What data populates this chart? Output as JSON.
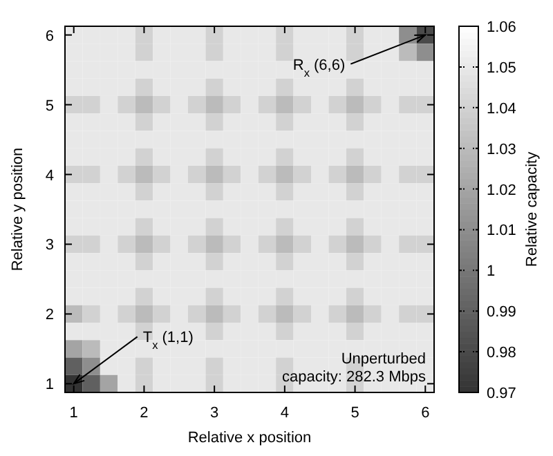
{
  "chart_data": {
    "type": "heatmap",
    "xlabel": "Relative x position",
    "ylabel": "Relative y position",
    "clabel": "Relative capacity",
    "clim": [
      0.97,
      1.06
    ],
    "cticks": [
      0.97,
      0.98,
      0.99,
      1,
      1.01,
      1.02,
      1.03,
      1.04,
      1.05,
      1.06
    ],
    "categories": [
      "1",
      null,
      null,
      null,
      "2",
      null,
      null,
      null,
      "3",
      null,
      null,
      null,
      "4",
      null,
      null,
      null,
      "5",
      null,
      null,
      null,
      "6"
    ],
    "y_categories": [
      "6",
      null,
      null,
      null,
      "5",
      null,
      null,
      null,
      "4",
      null,
      null,
      null,
      "3",
      null,
      null,
      null,
      "2",
      null,
      null,
      null,
      "1"
    ],
    "cells": [
      [
        1.05,
        1.05,
        1.05,
        1.05,
        1.04,
        1.05,
        1.05,
        1.05,
        1.04,
        1.05,
        1.05,
        1.05,
        1.04,
        1.05,
        1.05,
        1.05,
        1.04,
        1.05,
        1.05,
        1.01,
        0.98
      ],
      [
        1.05,
        1.05,
        1.05,
        1.05,
        1.04,
        1.05,
        1.05,
        1.05,
        1.04,
        1.05,
        1.05,
        1.05,
        1.04,
        1.05,
        1.05,
        1.05,
        1.04,
        1.05,
        1.05,
        1.03,
        1.01
      ],
      [
        1.05,
        1.05,
        1.05,
        1.05,
        1.05,
        1.05,
        1.05,
        1.05,
        1.05,
        1.05,
        1.05,
        1.05,
        1.05,
        1.05,
        1.05,
        1.05,
        1.05,
        1.05,
        1.05,
        1.05,
        1.05
      ],
      [
        1.05,
        1.05,
        1.05,
        1.05,
        1.04,
        1.05,
        1.05,
        1.05,
        1.04,
        1.05,
        1.05,
        1.05,
        1.04,
        1.05,
        1.05,
        1.05,
        1.04,
        1.05,
        1.05,
        1.05,
        1.05
      ],
      [
        1.04,
        1.04,
        1.05,
        1.04,
        1.03,
        1.04,
        1.05,
        1.04,
        1.03,
        1.04,
        1.05,
        1.04,
        1.03,
        1.04,
        1.05,
        1.04,
        1.03,
        1.04,
        1.05,
        1.04,
        1.04
      ],
      [
        1.05,
        1.05,
        1.05,
        1.05,
        1.04,
        1.05,
        1.05,
        1.05,
        1.04,
        1.05,
        1.05,
        1.05,
        1.04,
        1.05,
        1.05,
        1.05,
        1.04,
        1.05,
        1.05,
        1.05,
        1.05
      ],
      [
        1.05,
        1.05,
        1.05,
        1.05,
        1.05,
        1.05,
        1.05,
        1.05,
        1.05,
        1.05,
        1.05,
        1.05,
        1.05,
        1.05,
        1.05,
        1.05,
        1.05,
        1.05,
        1.05,
        1.05,
        1.05
      ],
      [
        1.05,
        1.05,
        1.05,
        1.05,
        1.04,
        1.05,
        1.05,
        1.05,
        1.04,
        1.05,
        1.05,
        1.05,
        1.04,
        1.05,
        1.05,
        1.05,
        1.04,
        1.05,
        1.05,
        1.05,
        1.05
      ],
      [
        1.04,
        1.04,
        1.05,
        1.04,
        1.03,
        1.04,
        1.05,
        1.04,
        1.03,
        1.04,
        1.05,
        1.04,
        1.03,
        1.04,
        1.05,
        1.04,
        1.03,
        1.04,
        1.05,
        1.04,
        1.04
      ],
      [
        1.05,
        1.05,
        1.05,
        1.05,
        1.04,
        1.05,
        1.05,
        1.05,
        1.04,
        1.05,
        1.05,
        1.05,
        1.04,
        1.05,
        1.05,
        1.05,
        1.04,
        1.05,
        1.05,
        1.05,
        1.05
      ],
      [
        1.05,
        1.05,
        1.05,
        1.05,
        1.05,
        1.05,
        1.05,
        1.05,
        1.05,
        1.05,
        1.05,
        1.05,
        1.05,
        1.05,
        1.05,
        1.05,
        1.05,
        1.05,
        1.05,
        1.05,
        1.05
      ],
      [
        1.05,
        1.05,
        1.05,
        1.05,
        1.04,
        1.05,
        1.05,
        1.05,
        1.04,
        1.05,
        1.05,
        1.05,
        1.04,
        1.05,
        1.05,
        1.05,
        1.04,
        1.05,
        1.05,
        1.05,
        1.05
      ],
      [
        1.04,
        1.04,
        1.05,
        1.04,
        1.03,
        1.04,
        1.05,
        1.04,
        1.03,
        1.04,
        1.05,
        1.04,
        1.03,
        1.04,
        1.05,
        1.04,
        1.03,
        1.04,
        1.05,
        1.04,
        1.04
      ],
      [
        1.05,
        1.05,
        1.05,
        1.05,
        1.04,
        1.05,
        1.05,
        1.05,
        1.04,
        1.05,
        1.05,
        1.05,
        1.04,
        1.05,
        1.05,
        1.05,
        1.04,
        1.05,
        1.05,
        1.05,
        1.05
      ],
      [
        1.05,
        1.05,
        1.05,
        1.05,
        1.05,
        1.05,
        1.05,
        1.05,
        1.05,
        1.05,
        1.05,
        1.05,
        1.05,
        1.05,
        1.05,
        1.05,
        1.05,
        1.05,
        1.05,
        1.05,
        1.05
      ],
      [
        1.05,
        1.05,
        1.05,
        1.05,
        1.04,
        1.05,
        1.05,
        1.05,
        1.04,
        1.05,
        1.05,
        1.05,
        1.04,
        1.05,
        1.05,
        1.05,
        1.04,
        1.05,
        1.05,
        1.05,
        1.05
      ],
      [
        1.03,
        1.04,
        1.05,
        1.04,
        1.03,
        1.04,
        1.05,
        1.04,
        1.03,
        1.04,
        1.05,
        1.04,
        1.03,
        1.04,
        1.05,
        1.04,
        1.03,
        1.04,
        1.05,
        1.04,
        1.04
      ],
      [
        1.05,
        1.05,
        1.05,
        1.05,
        1.04,
        1.05,
        1.05,
        1.05,
        1.04,
        1.05,
        1.05,
        1.05,
        1.04,
        1.05,
        1.05,
        1.05,
        1.04,
        1.05,
        1.05,
        1.05,
        1.05
      ],
      [
        1.02,
        1.03,
        1.05,
        1.05,
        1.05,
        1.05,
        1.05,
        1.05,
        1.05,
        1.05,
        1.05,
        1.05,
        1.05,
        1.05,
        1.05,
        1.05,
        1.05,
        1.05,
        1.05,
        1.05,
        1.05
      ],
      [
        0.99,
        1.01,
        1.05,
        1.05,
        1.04,
        1.05,
        1.05,
        1.05,
        1.04,
        1.05,
        1.05,
        1.05,
        1.04,
        1.05,
        1.05,
        1.05,
        1.04,
        1.05,
        1.05,
        1.05,
        1.05
      ],
      [
        0.97,
        0.99,
        1.02,
        1.05,
        1.04,
        1.05,
        1.05,
        1.05,
        1.04,
        1.05,
        1.05,
        1.05,
        1.04,
        1.05,
        1.05,
        1.05,
        1.04,
        1.05,
        1.05,
        1.05,
        1.05
      ]
    ],
    "annotations": [
      "T$_{x}$ (1,1)",
      "R$_{x}$ (6,6)",
      "Unperturbed",
      "capacity: 282.3 Mbps"
    ]
  }
}
